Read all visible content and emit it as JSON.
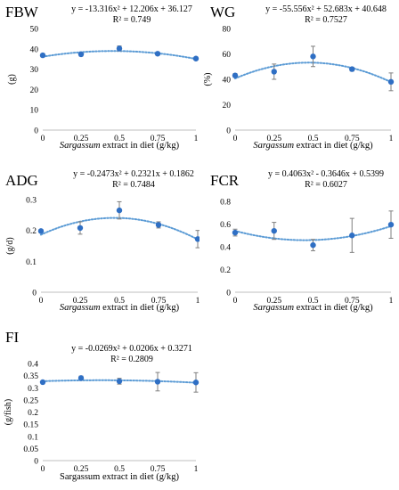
{
  "chart_data": [
    {
      "id": "fbw",
      "type": "scatter",
      "panel_label": "FBW",
      "equation": "y = -13.316x² + 12.206x + 36.127",
      "r2": "R² = 0.749",
      "xlabel_italic": "Sargassum",
      "xlabel_rest": " extract in diet (g/kg)",
      "ylabel": "(g)",
      "x": [
        0,
        0.25,
        0.5,
        0.75,
        1
      ],
      "xticks": [
        "0",
        "0.25",
        "0.5",
        "0.75",
        "1"
      ],
      "y": [
        36.8,
        37.3,
        40.2,
        37.6,
        35.2
      ],
      "err": [
        0.8,
        0.8,
        1.2,
        0.8,
        0.8
      ],
      "ylim": [
        0,
        50
      ],
      "yticks": [
        "0",
        "10",
        "20",
        "30",
        "40",
        "50"
      ],
      "ytick_values": [
        0,
        10,
        20,
        30,
        40,
        50
      ],
      "trend": {
        "a": -13.316,
        "b": 12.206,
        "c": 36.127
      },
      "grid": false,
      "marker_color": "#2f6fc4",
      "trend_color": "#5b9bd5"
    },
    {
      "id": "wg",
      "type": "scatter",
      "panel_label": "WG",
      "equation": "y = -55.556x² + 52.683x + 40.648",
      "r2": "R² = 0.7527",
      "xlabel_italic": "Sargassum",
      "xlabel_rest": " extract in diet (g/kg)",
      "ylabel": "(%)",
      "x": [
        0,
        0.25,
        0.5,
        0.75,
        1
      ],
      "xticks": [
        "0",
        "0.25",
        "0.5",
        "0.75",
        "1"
      ],
      "y": [
        43,
        46,
        58,
        48,
        38
      ],
      "err": [
        1.5,
        6,
        8,
        1.5,
        7
      ],
      "ylim": [
        0,
        80
      ],
      "yticks": [
        "0",
        "20",
        "40",
        "60",
        "80"
      ],
      "ytick_values": [
        0,
        20,
        40,
        60,
        80
      ],
      "trend": {
        "a": -55.556,
        "b": 52.683,
        "c": 40.648
      },
      "grid": false,
      "marker_color": "#2f6fc4",
      "trend_color": "#5b9bd5"
    },
    {
      "id": "adg",
      "type": "scatter",
      "panel_label": "ADG",
      "equation": "y = -0.2473x² + 0.2321x + 0.1862",
      "r2": "R² = 0.7484",
      "xlabel_italic": "Sargassum",
      "xlabel_rest": " extract in diet (g/kg)",
      "ylabel": "(g/d)",
      "x": [
        0,
        0.25,
        0.5,
        0.75,
        1
      ],
      "xticks": [
        "0",
        "0.25",
        "0.5",
        "0.75",
        "1"
      ],
      "y": [
        0.198,
        0.208,
        0.265,
        0.218,
        0.172
      ],
      "err": [
        0.005,
        0.02,
        0.028,
        0.01,
        0.028
      ],
      "ylim": [
        0,
        0.3
      ],
      "yticks": [
        "0",
        "0.1",
        "0.2",
        "0.3"
      ],
      "ytick_values": [
        0,
        0.1,
        0.2,
        0.3
      ],
      "trend": {
        "a": -0.2473,
        "b": 0.2321,
        "c": 0.1862
      },
      "grid": false,
      "marker_color": "#2f6fc4",
      "trend_color": "#5b9bd5"
    },
    {
      "id": "fcr",
      "type": "scatter",
      "panel_label": "FCR",
      "equation": "y = 0.4063x² - 0.3646x + 0.5399",
      "r2": "R² = 0.6027",
      "xlabel_italic": "Sargassum",
      "xlabel_rest": " extract in diet (g/kg)",
      "ylabel": "",
      "x": [
        0,
        0.25,
        0.5,
        0.75,
        1
      ],
      "xticks": [
        "0",
        "0.25",
        "0.5",
        "0.75",
        "1"
      ],
      "y": [
        0.525,
        0.54,
        0.415,
        0.5,
        0.595
      ],
      "err": [
        0.03,
        0.075,
        0.05,
        0.15,
        0.12
      ],
      "ylim": [
        0,
        0.8
      ],
      "yticks": [
        "0",
        "0.2",
        "0.4",
        "0.6",
        "0.8"
      ],
      "ytick_values": [
        0,
        0.2,
        0.4,
        0.6,
        0.8
      ],
      "trend": {
        "a": 0.4063,
        "b": -0.3646,
        "c": 0.5399
      },
      "grid": false,
      "marker_color": "#2f6fc4",
      "trend_color": "#5b9bd5"
    },
    {
      "id": "fi",
      "type": "scatter",
      "panel_label": "FI",
      "equation": "y = -0.0269x² + 0.0206x + 0.3271",
      "r2": "R² = 0.2809",
      "xlabel_italic": "",
      "xlabel_rest": "Sargassum extract in diet (g/kg)",
      "ylabel": "(g/fish)",
      "x": [
        0,
        0.25,
        0.5,
        0.75,
        1
      ],
      "xticks": [
        "0",
        "0.25",
        "0.5",
        "0.75",
        "1"
      ],
      "y": [
        0.323,
        0.34,
        0.327,
        0.325,
        0.322
      ],
      "err": [
        0.004,
        0.008,
        0.012,
        0.038,
        0.04
      ],
      "ylim": [
        0,
        0.4
      ],
      "yticks": [
        "0",
        "0.05",
        "0.1",
        "0.15",
        "0.2",
        "0.25",
        "0.3",
        "0.35",
        "0.4"
      ],
      "ytick_values": [
        0,
        0.05,
        0.1,
        0.15,
        0.2,
        0.25,
        0.3,
        0.35,
        0.4
      ],
      "trend": {
        "a": -0.0269,
        "b": 0.0206,
        "c": 0.3271
      },
      "grid": false,
      "marker_color": "#2f6fc4",
      "trend_color": "#5b9bd5"
    }
  ]
}
